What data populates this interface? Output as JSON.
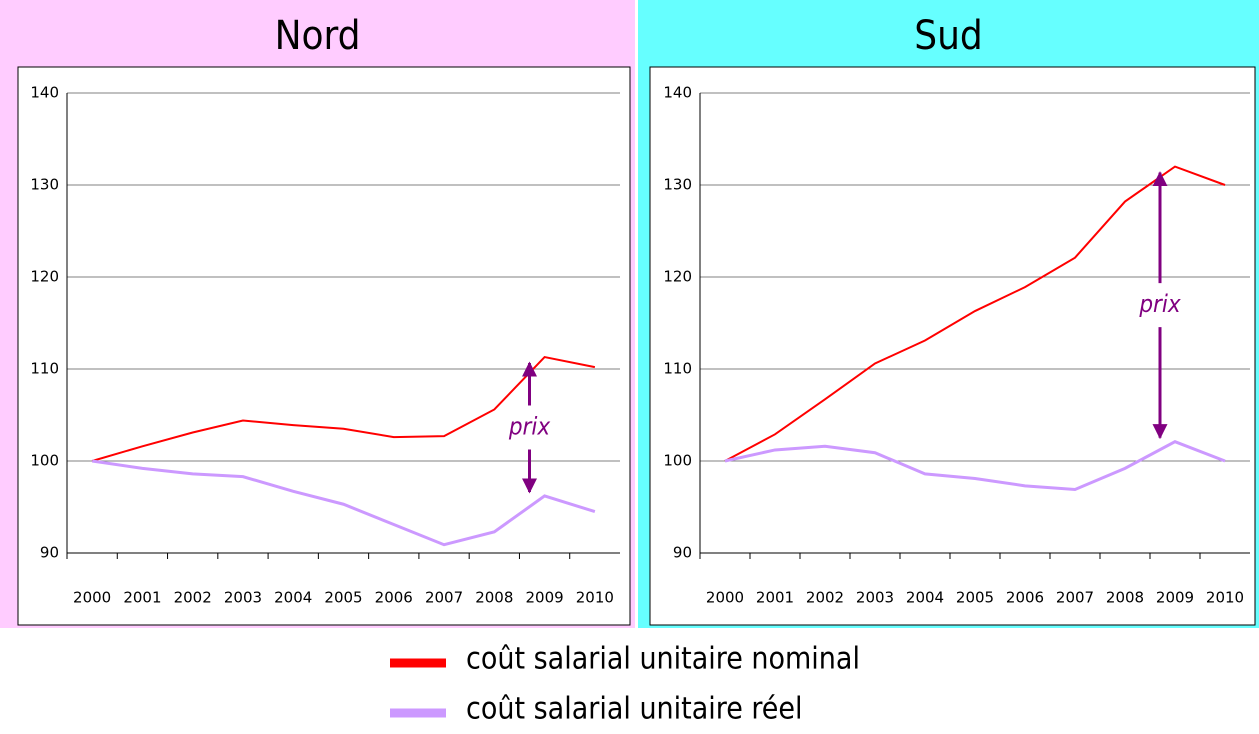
{
  "chart_data": [
    {
      "type": "line",
      "title": "Nord",
      "background": "#ffccff",
      "categories": [
        "2000",
        "2001",
        "2002",
        "2003",
        "2004",
        "2005",
        "2006",
        "2007",
        "2008",
        "2009",
        "2010"
      ],
      "series": [
        {
          "name": "coût salarial unitaire nominal",
          "color": "#ff0000",
          "values": [
            100,
            101.6,
            103.1,
            104.4,
            103.9,
            103.5,
            102.6,
            102.7,
            105.6,
            111.3,
            110.2
          ]
        },
        {
          "name": "coût salarial unitaire réel",
          "color": "#cc99ff",
          "values": [
            100,
            99.2,
            98.6,
            98.3,
            96.7,
            95.3,
            93.1,
            90.9,
            92.3,
            96.2,
            94.5
          ]
        }
      ],
      "ylim": [
        90,
        140
      ],
      "yticks": [
        90,
        100,
        110,
        120,
        130,
        140
      ],
      "grid": true,
      "annotation": "prix"
    },
    {
      "type": "line",
      "title": "Sud",
      "background": "#66ffff",
      "categories": [
        "2000",
        "2001",
        "2002",
        "2003",
        "2004",
        "2005",
        "2006",
        "2007",
        "2008",
        "2009",
        "2010"
      ],
      "series": [
        {
          "color": "#ff0000",
          "values": [
            100,
            102.9,
            106.7,
            110.6,
            113.1,
            116.3,
            118.9,
            122.1,
            128.2,
            132.0,
            130.0
          ]
        },
        {
          "color": "#cc99ff",
          "values": [
            100,
            101.2,
            101.6,
            100.9,
            98.6,
            98.1,
            97.3,
            96.9,
            99.2,
            102.1,
            100.0
          ]
        }
      ],
      "ylim": [
        90,
        140
      ],
      "yticks": [
        90,
        100,
        110,
        120,
        130,
        140
      ],
      "grid": true,
      "annotation": "prix"
    }
  ]
}
